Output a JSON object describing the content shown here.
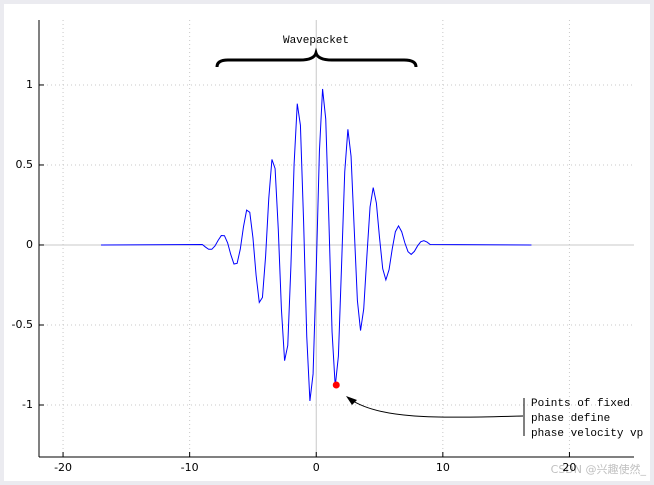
{
  "chart_data": {
    "type": "line",
    "annotations": {
      "bracket_text": "Wavepacket",
      "arrow_text": [
        "Points of fixed",
        "phase define",
        "phase velocity vp"
      ]
    },
    "watermark": "CSDN @兴趣使然_",
    "x": [
      -17,
      -9,
      -8.75,
      -8.5,
      -8.25,
      -8,
      -7.75,
      -7.5,
      -7.25,
      -7,
      -6.75,
      -6.5,
      -6.25,
      -6,
      -5.75,
      -5.5,
      -5.25,
      -5,
      -4.75,
      -4.5,
      -4.25,
      -4,
      -3.75,
      -3.5,
      -3.25,
      -3,
      -2.75,
      -2.5,
      -2.25,
      -2,
      -1.75,
      -1.5,
      -1.25,
      -1,
      -0.75,
      -0.5,
      -0.25,
      0,
      0.25,
      0.5,
      0.75,
      1,
      1.25,
      1.5,
      1.75,
      2,
      2.25,
      2.5,
      2.75,
      3,
      3.25,
      3.5,
      3.75,
      4,
      4.25,
      4.5,
      4.75,
      5,
      5.25,
      5.5,
      5.75,
      6,
      6.25,
      6.5,
      6.75,
      7,
      7.25,
      7.5,
      7.75,
      8,
      8.25,
      8.5,
      8.75,
      9,
      17
    ],
    "series": [
      {
        "color": "#0000ff",
        "values": [
          0,
          0.003,
          -0.013,
          -0.027,
          -0.027,
          -0.006,
          0.029,
          0.059,
          0.058,
          0.013,
          -0.06,
          -0.119,
          -0.115,
          -0.026,
          0.113,
          0.218,
          0.204,
          0.045,
          -0.19,
          -0.359,
          -0.328,
          -0.07,
          0.291,
          0.535,
          0.477,
          0.1,
          -0.403,
          -0.723,
          -0.628,
          -0.128,
          0.504,
          0.883,
          0.748,
          0.149,
          -0.572,
          -0.975,
          -0.806,
          -0.156,
          0.586,
          0.975,
          0.787,
          0.149,
          -0.544,
          -0.883,
          -0.694,
          -0.128,
          0.456,
          0.723,
          0.554,
          0.1,
          -0.347,
          -0.535,
          -0.4,
          -0.07,
          0.238,
          0.359,
          0.262,
          0.045,
          -0.148,
          -0.218,
          -0.155,
          -0.026,
          0.083,
          0.119,
          0.083,
          0.013,
          -0.042,
          -0.059,
          -0.04,
          -0.006,
          0.02,
          0.027,
          0.018,
          0.003,
          0
        ]
      }
    ],
    "highlight_point": {
      "x": 1.58,
      "y": -0.875,
      "color": "#ff0000"
    },
    "xlim": [
      -21.9,
      25.1
    ],
    "ylim": [
      -1.325,
      1.406
    ],
    "xticks": [
      -20,
      -10,
      0,
      10,
      20
    ],
    "yticks": [
      -1,
      -0.5,
      0,
      0.5,
      1
    ],
    "grid": true
  }
}
